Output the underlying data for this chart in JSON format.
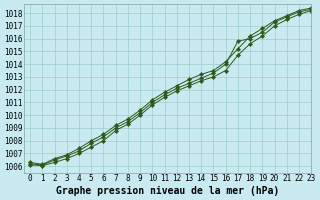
{
  "title": "Graphe pression niveau de la mer (hPa)",
  "xlim": [
    -0.5,
    23
  ],
  "ylim": [
    1005.5,
    1018.7
  ],
  "yticks": [
    1006,
    1007,
    1008,
    1009,
    1010,
    1011,
    1012,
    1013,
    1014,
    1015,
    1016,
    1017,
    1018
  ],
  "xticks": [
    0,
    1,
    2,
    3,
    4,
    5,
    6,
    7,
    8,
    9,
    10,
    11,
    12,
    13,
    14,
    15,
    16,
    17,
    18,
    19,
    20,
    21,
    22,
    23
  ],
  "background_color": "#c8eaf0",
  "grid_color": "#9ecfcc",
  "line_color": "#2d5a1b",
  "line1_y": [
    1006.2,
    1006.1,
    1006.5,
    1006.8,
    1007.2,
    1007.8,
    1008.3,
    1009.0,
    1009.5,
    1010.2,
    1011.0,
    1011.6,
    1012.1,
    1012.5,
    1012.9,
    1013.3,
    1014.0,
    1015.8,
    1016.0,
    1016.5,
    1017.3,
    1017.7,
    1018.1,
    1018.3
  ],
  "line2_y": [
    1006.3,
    1006.15,
    1006.6,
    1006.9,
    1007.4,
    1008.0,
    1008.5,
    1009.2,
    1009.7,
    1010.4,
    1011.2,
    1011.8,
    1012.3,
    1012.8,
    1013.2,
    1013.5,
    1014.2,
    1015.2,
    1016.2,
    1016.8,
    1017.4,
    1017.8,
    1018.2,
    1018.4
  ],
  "line3_y": [
    1006.1,
    1006.05,
    1006.3,
    1006.6,
    1007.0,
    1007.5,
    1008.0,
    1008.8,
    1009.3,
    1010.0,
    1010.8,
    1011.4,
    1011.9,
    1012.3,
    1012.7,
    1013.0,
    1013.5,
    1014.7,
    1015.6,
    1016.2,
    1017.0,
    1017.5,
    1017.9,
    1018.2
  ],
  "title_fontsize": 7,
  "tick_fontsize": 5.5
}
